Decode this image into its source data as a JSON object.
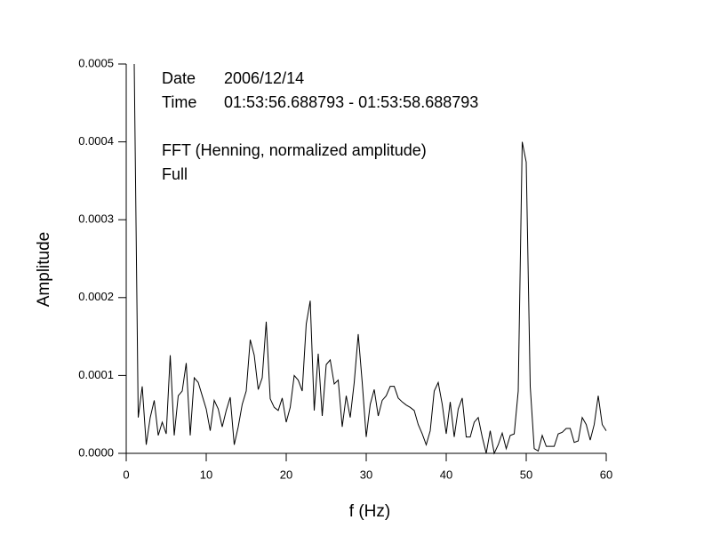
{
  "chart_data": {
    "type": "line",
    "xlabel": "f (Hz)",
    "ylabel": "Amplitude",
    "annotations": [
      "Date",
      "2006/12/14",
      "Time",
      "01:53:56.688793 - 01:53:58.688793",
      "FFT (Henning, normalized amplitude)",
      "Full"
    ],
    "xlim": [
      0,
      60
    ],
    "xticks": [
      0,
      10,
      20,
      30,
      40,
      50,
      60
    ],
    "ylim": [
      0,
      0.0005
    ],
    "yticks": [
      {
        "value": 0,
        "label": "0.0000"
      },
      {
        "value": 0.0001,
        "label": "0.0001"
      },
      {
        "value": 0.0002,
        "label": "0.0002"
      },
      {
        "value": 0.0003,
        "label": "0.0003"
      },
      {
        "value": 0.0004,
        "label": "0.0004"
      },
      {
        "value": 0.0005,
        "label": "0.0005"
      }
    ],
    "x": [
      1,
      1.5,
      2,
      2.5,
      3,
      3.5,
      4,
      4.5,
      5,
      5.5,
      6,
      6.5,
      7,
      7.5,
      8,
      8.5,
      9,
      9.5,
      10,
      10.5,
      11,
      11.5,
      12,
      12.5,
      13,
      13.5,
      14,
      14.5,
      15,
      15.5,
      16,
      16.5,
      17,
      17.5,
      18,
      18.5,
      19,
      19.5,
      20,
      20.5,
      21,
      21.5,
      22,
      22.5,
      23,
      23.5,
      24,
      24.5,
      25,
      25.5,
      26,
      26.5,
      27,
      27.5,
      28,
      28.5,
      29,
      29.5,
      30,
      30.5,
      31,
      31.5,
      32,
      32.5,
      33,
      33.5,
      34,
      34.5,
      35,
      35.5,
      36,
      36.5,
      37,
      37.5,
      38,
      38.5,
      39,
      39.5,
      40,
      40.5,
      41,
      41.5,
      42,
      42.5,
      43,
      43.5,
      44,
      44.5,
      45,
      45.5,
      46,
      46.5,
      47,
      47.5,
      48,
      48.5,
      49,
      49.5,
      50,
      50.5,
      51,
      51.5,
      52,
      52.5,
      53,
      53.5,
      54,
      54.5,
      55,
      55.5,
      56,
      56.5,
      57,
      57.5,
      58,
      58.5,
      59,
      59.5,
      60
    ],
    "series": [
      {
        "color": "#000000",
        "values": [
          0.0005,
          4.6e-05,
          8.6e-05,
          1.1e-05,
          4.6e-05,
          6.8e-05,
          2.3e-05,
          4e-05,
          2.5e-05,
          0.000126,
          2.3e-05,
          7.4e-05,
          8e-05,
          0.000116,
          2.3e-05,
          9.7e-05,
          9.1e-05,
          7.4e-05,
          5.7e-05,
          2.9e-05,
          6.8e-05,
          5.7e-05,
          3.4e-05,
          5.5e-05,
          7.2e-05,
          1.1e-05,
          3.4e-05,
          6.3e-05,
          8e-05,
          0.000146,
          0.000126,
          8.2e-05,
          9.7e-05,
          0.000169,
          7e-05,
          5.9e-05,
          5.5e-05,
          7.1e-05,
          4e-05,
          5.9e-05,
          0.0001,
          9.4e-05,
          8e-05,
          0.000166,
          0.000196,
          5.5e-05,
          0.000128,
          4.8e-05,
          0.000114,
          0.00012,
          8.9e-05,
          9.4e-05,
          3.4e-05,
          7.4e-05,
          4.6e-05,
          9.1e-05,
          0.000153,
          9.1e-05,
          2.1e-05,
          6.3e-05,
          8.2e-05,
          4.8e-05,
          6.8e-05,
          7.4e-05,
          8.6e-05,
          8.6e-05,
          7.1e-05,
          6.6e-05,
          6.2e-05,
          5.9e-05,
          5.5e-05,
          3.7e-05,
          2.5e-05,
          1.1e-05,
          2.9e-05,
          8e-05,
          9.1e-05,
          6.3e-05,
          2.5e-05,
          6.6e-05,
          2.1e-05,
          5.7e-05,
          7.1e-05,
          2.1e-05,
          2.1e-05,
          4e-05,
          4.6e-05,
          2.1e-05,
          0,
          2.9e-05,
          0,
          1.1e-05,
          2.6e-05,
          6e-06,
          2.3e-05,
          2.5e-05,
          8e-05,
          0.0004,
          0.000374,
          8.6e-05,
          6e-06,
          3e-06,
          2.3e-05,
          9e-06,
          9e-06,
          9e-06,
          2.5e-05,
          2.7e-05,
          3.2e-05,
          3.2e-05,
          1.4e-05,
          1.6e-05,
          4.6e-05,
          3.7e-05,
          1.7e-05,
          3.7e-05,
          7.4e-05,
          3.7e-05,
          2.9e-05
        ]
      }
    ]
  }
}
